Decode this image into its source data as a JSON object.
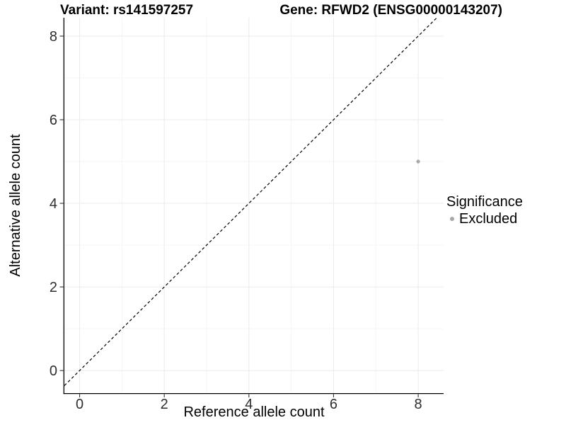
{
  "header": {
    "title_left": "Variant: rs141597257",
    "title_right": "Gene: RFWD2 (ENSG00000143207)"
  },
  "legend": {
    "title": "Significance",
    "items": [
      {
        "label": "Excluded",
        "color": "#A8A8A8"
      }
    ]
  },
  "chart_data": {
    "type": "scatter",
    "title": "Variant: rs141597257   Gene: RFWD2 (ENSG00000143207)",
    "xlabel": "Reference allele count",
    "ylabel": "Alternative allele count",
    "xlim": [
      -0.36,
      8.6
    ],
    "ylim": [
      -0.54,
      8.44
    ],
    "xticks": [
      0,
      2,
      4,
      6,
      8
    ],
    "yticks": [
      0,
      2,
      4,
      6,
      8
    ],
    "minor_xticks": [
      1,
      3,
      5,
      7
    ],
    "minor_yticks": [
      1,
      3,
      5,
      7
    ],
    "grid": "major+minor",
    "legend_position": "right",
    "legend_title": "Significance",
    "series": [
      {
        "name": "Excluded",
        "color": "#A8A8A8",
        "points": [
          {
            "x": 8,
            "y": 5
          }
        ]
      }
    ],
    "reference_line": {
      "slope": 1,
      "intercept": 0,
      "linestyle": "dashed",
      "color": "#000000"
    },
    "style": {
      "background": "#FFFFFF",
      "major_grid_color": "#EBEBEB",
      "minor_grid_color": "#F5F5F5",
      "axis_line_color": "#000000",
      "tick_color": "#333333",
      "tick_label_color": "#2E2E2E",
      "point_color": "#A8A8A8",
      "point_radius": 2.6
    }
  }
}
